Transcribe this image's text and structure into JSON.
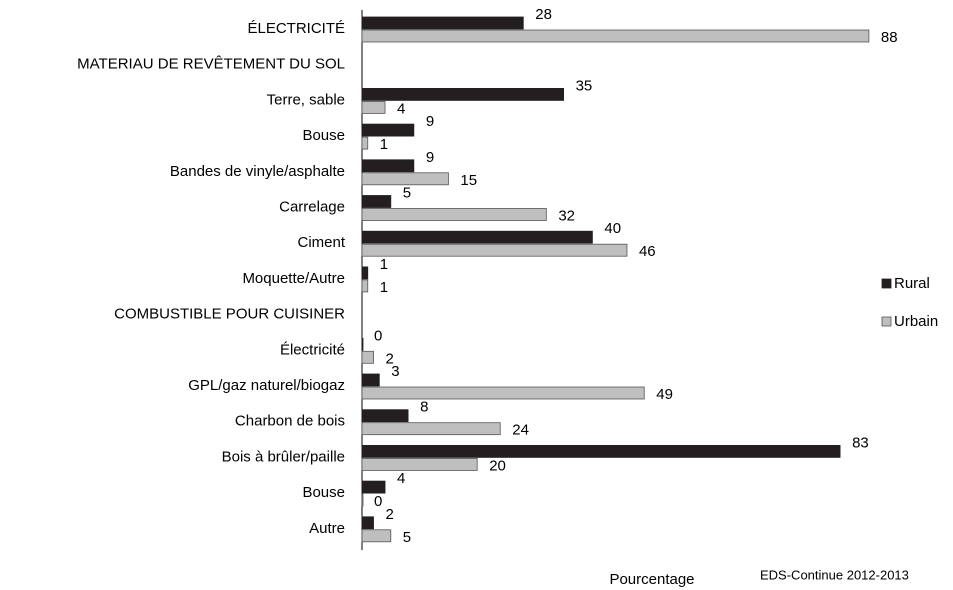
{
  "chart_data": {
    "type": "hbar",
    "categories": [
      "ÉLECTRICITÉ",
      "MATERIAU DE REVÊTEMENT DU SOL",
      "Terre, sable",
      "Bouse",
      "Bandes de vinyle/asphalte",
      "Carrelage",
      "Ciment",
      "Moquette/Autre",
      "COMBUSTIBLE POUR CUISINER",
      "Électricité",
      "GPL/gaz naturel/biogaz",
      "Charbon de bois",
      "Bois à brûler/paille",
      "Bouse",
      "Autre"
    ],
    "series": [
      {
        "name": "Rural",
        "color": "#231f20",
        "values": [
          28,
          null,
          35,
          9,
          9,
          5,
          40,
          1,
          null,
          0,
          3,
          8,
          83,
          4,
          2
        ]
      },
      {
        "name": "Urbain",
        "color": "#bfbfbf",
        "values": [
          88,
          null,
          4,
          1,
          15,
          32,
          46,
          1,
          null,
          2,
          49,
          24,
          20,
          0,
          5
        ]
      }
    ],
    "xlim": [
      0,
      100
    ],
    "xlabel": "Pourcentage",
    "source": "EDS-Continue 2012-2013",
    "legend": "right"
  }
}
